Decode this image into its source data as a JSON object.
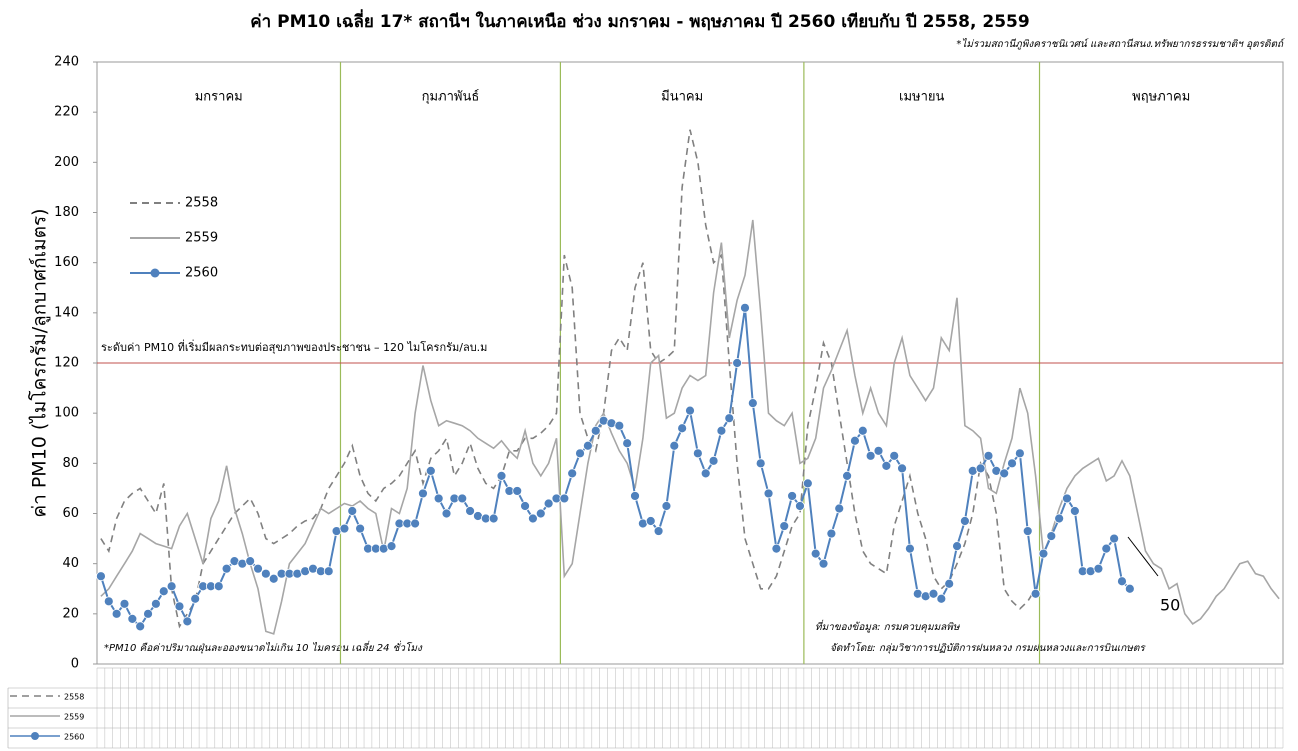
{
  "chart_data": {
    "type": "line",
    "title": "ค่า PM10 เฉลี่ย 17* สถานีฯ ในภาคเหนือ ช่วง มกราคม - พฤษภาคม ปี 2560 เทียบกับ ปี 2558, 2559",
    "subtitle": "*ไม่รวมสถานีภูพิงคราชนิเวศน์ และสถานีสนง.ทรัพยากรธรรมชาติฯ อุตรดิตถ์",
    "y_label": "ค่า PM10 (ไมโครกรัม/ลูกบาศก์เมตร)",
    "ylim": [
      0,
      240
    ],
    "yticks": [
      0,
      20,
      40,
      60,
      80,
      100,
      120,
      140,
      160,
      180,
      200,
      220,
      240
    ],
    "months": [
      "มกราคม",
      "กุมภาพันธ์",
      "มีนาคม",
      "เมษายน",
      "พฤษภาคม"
    ],
    "month_days": [
      31,
      28,
      31,
      30,
      31
    ],
    "threshold": {
      "value": 120,
      "label": "ระดับค่า PM10 ที่เริ่มมีผลกระทบต่อสุขภาพของประชาชน – 120 ไมโครกรัม/ลบ.ม",
      "color": "#c0504d"
    },
    "notes": [
      "*PM10 คือค่าปริมาณฝุ่นละอองขนาดไม่เกิน 10 ไมครอน เฉลี่ย 24 ชั่วโมง",
      "ที่มาของข้อมูล: กรมควบคุมมลพิษ",
      "จัดทำโดย: กลุ่มวิชาการปฏิบัติการฝนหลวง  กรมฝนหลวงและการบินเกษตร"
    ],
    "annotation": "50",
    "series": [
      {
        "name": "2558",
        "color": "#808080",
        "dashed": true,
        "markers": false,
        "values": [
          50,
          45,
          58,
          65,
          68,
          70,
          65,
          60,
          72,
          30,
          15,
          20,
          25,
          40,
          45,
          50,
          55,
          60,
          63,
          66,
          60,
          50,
          48,
          50,
          52,
          55,
          57,
          58,
          62,
          70,
          75,
          80,
          87,
          75,
          68,
          65,
          70,
          72,
          75,
          80,
          85,
          72,
          82,
          85,
          90,
          75,
          80,
          88,
          78,
          72,
          70,
          75,
          85,
          85,
          90,
          90,
          92,
          95,
          100,
          163,
          150,
          100,
          90,
          85,
          100,
          125,
          130,
          125,
          150,
          160,
          125,
          120,
          122,
          125,
          190,
          213,
          200,
          175,
          160,
          163,
          120,
          80,
          50,
          40,
          30,
          30,
          35,
          45,
          55,
          60,
          95,
          110,
          128,
          120,
          100,
          80,
          60,
          45,
          40,
          38,
          36,
          55,
          65,
          75,
          60,
          50,
          35,
          30,
          33,
          40,
          48,
          60,
          80,
          75,
          60,
          30,
          25,
          22,
          25,
          30,
          null,
          null,
          null,
          null,
          null,
          null,
          null,
          null,
          null,
          null,
          null,
          null,
          null,
          null,
          null,
          null,
          null,
          null,
          null,
          null,
          null,
          null,
          null,
          null,
          null,
          null,
          null,
          null,
          null,
          null,
          null
        ]
      },
      {
        "name": "2559",
        "color": "#a6a6a6",
        "dashed": false,
        "markers": false,
        "values": [
          27,
          30,
          35,
          40,
          45,
          52,
          50,
          48,
          47,
          46,
          55,
          60,
          50,
          40,
          58,
          65,
          79,
          62,
          52,
          40,
          30,
          13,
          12,
          25,
          40,
          44,
          48,
          55,
          62,
          60,
          62,
          64,
          63,
          65,
          62,
          60,
          45,
          62,
          60,
          70,
          100,
          119,
          105,
          95,
          97,
          96,
          95,
          93,
          90,
          88,
          86,
          89,
          85,
          82,
          93,
          80,
          75,
          80,
          90,
          35,
          40,
          60,
          80,
          95,
          100,
          92,
          85,
          80,
          70,
          90,
          120,
          123,
          98,
          100,
          110,
          115,
          113,
          115,
          148,
          168,
          130,
          145,
          155,
          177,
          140,
          100,
          97,
          95,
          100,
          80,
          82,
          90,
          110,
          117,
          125,
          133,
          115,
          100,
          110,
          100,
          95,
          120,
          130,
          115,
          110,
          105,
          110,
          130,
          125,
          146,
          95,
          93,
          90,
          70,
          68,
          80,
          90,
          110,
          100,
          75,
          44,
          52,
          62,
          70,
          75,
          78,
          80,
          82,
          73,
          75,
          81,
          75,
          60,
          45,
          40,
          38,
          30,
          32,
          20,
          16,
          18,
          22,
          27,
          30,
          35,
          40,
          41,
          36,
          35,
          30,
          26
        ]
      },
      {
        "name": "2560",
        "color": "#4f81bd",
        "dashed": false,
        "markers": true,
        "values": [
          35,
          25,
          20,
          24,
          18,
          15,
          20,
          24,
          29,
          31,
          23,
          17,
          26,
          31,
          31,
          31,
          38,
          41,
          40,
          41,
          38,
          36,
          34,
          36,
          36,
          36,
          37,
          38,
          37,
          37,
          53,
          54,
          61,
          54,
          46,
          46,
          46,
          47,
          56,
          56,
          56,
          68,
          77,
          66,
          60,
          66,
          66,
          61,
          59,
          58,
          58,
          75,
          69,
          69,
          63,
          58,
          60,
          64,
          66,
          66,
          76,
          84,
          87,
          93,
          97,
          96,
          95,
          88,
          67,
          56,
          57,
          53,
          63,
          87,
          94,
          101,
          84,
          76,
          81,
          93,
          98,
          120,
          142,
          104,
          80,
          68,
          46,
          55,
          67,
          63,
          72,
          44,
          40,
          52,
          62,
          75,
          89,
          93,
          83,
          85,
          79,
          83,
          78,
          46,
          28,
          27,
          28,
          26,
          32,
          47,
          57,
          77,
          78,
          83,
          77,
          76,
          80,
          84,
          53,
          28,
          44,
          51,
          58,
          66,
          61,
          37,
          37,
          38,
          46,
          50,
          33,
          30,
          null,
          null,
          null,
          null,
          null,
          null,
          null,
          null,
          null,
          null,
          null,
          null,
          null,
          null,
          null,
          null,
          null,
          null,
          null
        ]
      }
    ]
  }
}
